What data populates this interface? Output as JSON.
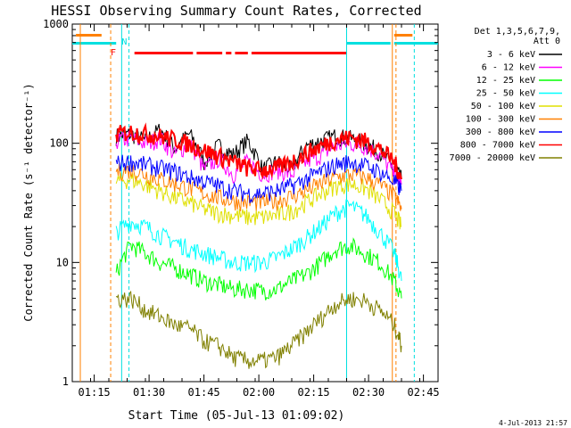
{
  "chart_data": {
    "type": "line",
    "title": "HESSI Observing Summary Count Rates, Corrected",
    "xlabel": "Start Time (05-Jul-13 01:09:02)",
    "ylabel": "Corrected Count Rate (s⁻¹ detector⁻¹)",
    "yscale": "log",
    "ylim": [
      1,
      1000
    ],
    "xlim": [
      "01:09",
      "02:49"
    ],
    "x_ticks": [
      "01:15",
      "01:30",
      "01:45",
      "02:00",
      "02:15",
      "02:30",
      "02:45"
    ],
    "y_ticks": [
      "1",
      "10",
      "100",
      "1000"
    ],
    "legend_position": "right",
    "legend_title": [
      "Det 1,3,5,6,7,9,",
      "Att 0"
    ],
    "footer": "4-Jul-2013 21:57",
    "flag_labels": {
      "night": "N",
      "saa": "F"
    },
    "x_minutes": [
      12,
      16,
      20,
      24,
      28,
      32,
      36,
      40,
      44,
      48,
      52,
      56,
      60,
      64,
      68,
      72,
      76,
      80,
      84,
      88,
      90
    ],
    "series": [
      {
        "name": "3 - 6 keV",
        "color": "#000000",
        "values": [
          115,
          120,
          105,
          130,
          90,
          120,
          70,
          95,
          80,
          105,
          60,
          70,
          60,
          95,
          105,
          115,
          110,
          100,
          85,
          60,
          50
        ]
      },
      {
        "name": "6 - 12 keV",
        "color": "#ff00ff",
        "values": [
          105,
          110,
          100,
          110,
          80,
          100,
          60,
          75,
          55,
          70,
          55,
          60,
          55,
          70,
          80,
          95,
          100,
          95,
          80,
          55,
          45
        ]
      },
      {
        "name": "12 - 25 keV",
        "color": "#00ff00",
        "values": [
          8,
          14,
          12,
          10,
          9,
          8,
          7,
          6.5,
          6,
          6,
          5.8,
          6,
          7,
          8,
          10,
          13,
          14,
          12,
          10,
          7,
          5
        ]
      },
      {
        "name": "25 - 50 keV",
        "color": "#00ffff",
        "values": [
          18,
          22,
          20,
          17,
          15,
          13,
          12,
          11,
          10,
          10,
          10,
          11,
          13,
          16,
          20,
          26,
          30,
          25,
          18,
          12,
          7
        ]
      },
      {
        "name": "50 - 100 keV",
        "color": "#e0e000",
        "values": [
          48,
          50,
          45,
          40,
          35,
          32,
          28,
          26,
          25,
          24,
          24,
          25,
          27,
          32,
          38,
          44,
          46,
          42,
          34,
          26,
          20
        ]
      },
      {
        "name": "100 - 300 keV",
        "color": "#ff8000",
        "values": [
          58,
          60,
          55,
          50,
          46,
          42,
          38,
          35,
          33,
          32,
          32,
          33,
          36,
          40,
          46,
          52,
          55,
          52,
          45,
          36,
          28
        ]
      },
      {
        "name": "300 - 800 keV",
        "color": "#0000ff",
        "values": [
          68,
          70,
          66,
          62,
          58,
          52,
          48,
          44,
          40,
          38,
          38,
          40,
          44,
          50,
          58,
          66,
          70,
          65,
          58,
          48,
          40
        ]
      },
      {
        "name": "800 - 7000 keV",
        "color": "#ff0000",
        "values": [
          120,
          125,
          120,
          115,
          108,
          98,
          88,
          78,
          70,
          62,
          60,
          62,
          70,
          82,
          95,
          108,
          112,
          105,
          90,
          70,
          50
        ]
      },
      {
        "name": "7000 - 20000 keV",
        "color": "#808000",
        "values": [
          5,
          5,
          4,
          3.5,
          3,
          2.8,
          2.2,
          2,
          1.6,
          1.5,
          1.5,
          1.6,
          2,
          2.6,
          3.4,
          4.5,
          5,
          4.8,
          4,
          3,
          2
        ]
      }
    ]
  }
}
